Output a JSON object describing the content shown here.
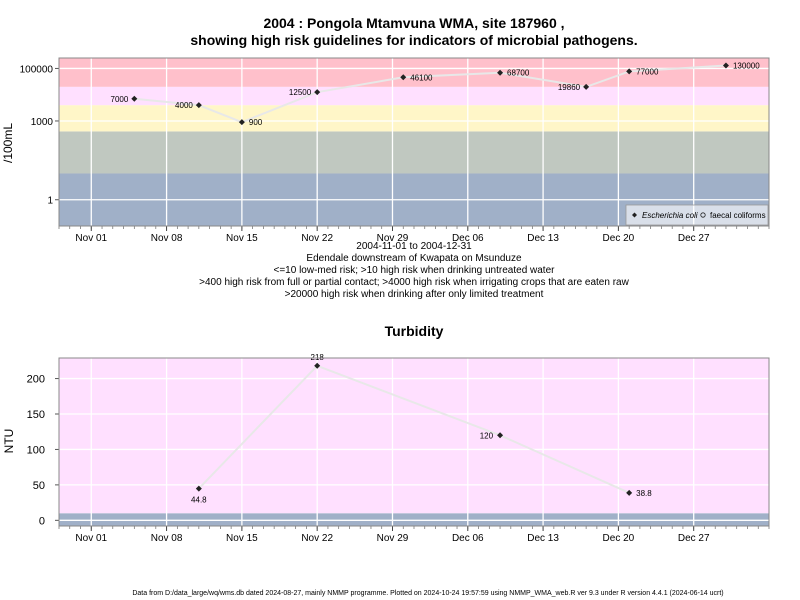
{
  "chart_data": [
    {
      "type": "line",
      "title": [
        "2004 : Pongola Mtamvuna WMA, site 187960 ,",
        "showing high risk guidelines for indicators of microbial pathogens."
      ],
      "ylabel": "/100mL",
      "y_scale": "log",
      "y_ticks": [
        {
          "value": 1,
          "label": "1"
        },
        {
          "value": 1000,
          "label": "1000"
        },
        {
          "value": 100000,
          "label": "100000"
        }
      ],
      "x_ticks": [
        {
          "date": "2004-11-01",
          "label": "Nov 01"
        },
        {
          "date": "2004-11-08",
          "label": "Nov 08"
        },
        {
          "date": "2004-11-15",
          "label": "Nov 15"
        },
        {
          "date": "2004-11-22",
          "label": "Nov 22"
        },
        {
          "date": "2004-11-29",
          "label": "Nov 29"
        },
        {
          "date": "2004-12-06",
          "label": "Dec 06"
        },
        {
          "date": "2004-12-13",
          "label": "Dec 13"
        },
        {
          "date": "2004-12-20",
          "label": "Dec 20"
        },
        {
          "date": "2004-12-27",
          "label": "Dec 27"
        }
      ],
      "grid": true,
      "risk_bands": [
        {
          "from": 0.1,
          "to": 10,
          "color": "#a0b0c8"
        },
        {
          "from": 10,
          "to": 400,
          "color": "#c0c8c0"
        },
        {
          "from": 400,
          "to": 4000,
          "color": "#fff6c8"
        },
        {
          "from": 4000,
          "to": 20000,
          "color": "#ffe0ff"
        },
        {
          "from": 20000,
          "to": 250000,
          "color": "#ffc0cb"
        }
      ],
      "series": [
        {
          "name": "Escherichia coli",
          "marker": "diamond",
          "points": [
            {
              "date": "2004-11-05",
              "y": 7000,
              "label": "7000"
            },
            {
              "date": "2004-11-11",
              "y": 4000,
              "label": "4000"
            },
            {
              "date": "2004-11-15",
              "y": 900,
              "label": "900"
            },
            {
              "date": "2004-11-22",
              "y": 12500,
              "label": "12500"
            },
            {
              "date": "2004-11-30",
              "y": 46100,
              "label": "46100"
            },
            {
              "date": "2004-12-09",
              "y": 68700,
              "label": "68700"
            },
            {
              "date": "2004-12-17",
              "y": 19860,
              "label": "19860"
            },
            {
              "date": "2004-12-21",
              "y": 77000,
              "label": "77000"
            },
            {
              "date": "2004-12-30",
              "y": 130000,
              "label": "130000"
            }
          ]
        }
      ],
      "legend": {
        "position": "bottom-right",
        "entries": [
          "Escherichia coli",
          "faecal coliforms"
        ]
      },
      "caption": [
        "2004-11-01 to 2004-12-31",
        "Edendale downstream of Kwapata on Msunduze",
        "<=10 low-med risk; >10 high risk when drinking untreated water",
        ">400 high risk from full or partial contact; >4000 high risk when irrigating crops that are eaten raw",
        ">20000 high risk when drinking after only limited treatment"
      ]
    },
    {
      "type": "line",
      "title": "Turbidity",
      "ylabel": "NTU",
      "ylim": [
        -8,
        229
      ],
      "y_ticks": [
        0,
        50,
        100,
        150,
        200
      ],
      "x_ticks": [
        {
          "date": "2004-11-01",
          "label": "Nov 01"
        },
        {
          "date": "2004-11-08",
          "label": "Nov 08"
        },
        {
          "date": "2004-11-15",
          "label": "Nov 15"
        },
        {
          "date": "2004-11-22",
          "label": "Nov 22"
        },
        {
          "date": "2004-11-29",
          "label": "Nov 29"
        },
        {
          "date": "2004-12-06",
          "label": "Dec 06"
        },
        {
          "date": "2004-12-13",
          "label": "Dec 13"
        },
        {
          "date": "2004-12-20",
          "label": "Dec 20"
        },
        {
          "date": "2004-12-27",
          "label": "Dec 27"
        }
      ],
      "grid": true,
      "bands": [
        {
          "from": -8,
          "to": 10,
          "color": "#a0b0c8"
        },
        {
          "from": 10,
          "to": 229,
          "color": "#ffe0ff"
        }
      ],
      "series": [
        {
          "name": "Turbidity",
          "points": [
            {
              "date": "2004-11-11",
              "y": 44.8,
              "label": "44.8"
            },
            {
              "date": "2004-11-22",
              "y": 218,
              "label": "218"
            },
            {
              "date": "2004-12-09",
              "y": 120,
              "label": "120"
            },
            {
              "date": "2004-12-21",
              "y": 38.8,
              "label": "38.8"
            }
          ]
        }
      ]
    }
  ],
  "footer": "Data from D:/data_large/wq/wms.db dated 2024-08-27, mainly NMMP programme. Plotted on 2024-10-24 19:57:59 using NMMP_WMA_web.R ver 9.3 under R version 4.4.1 (2024-06-14 ucrt)"
}
